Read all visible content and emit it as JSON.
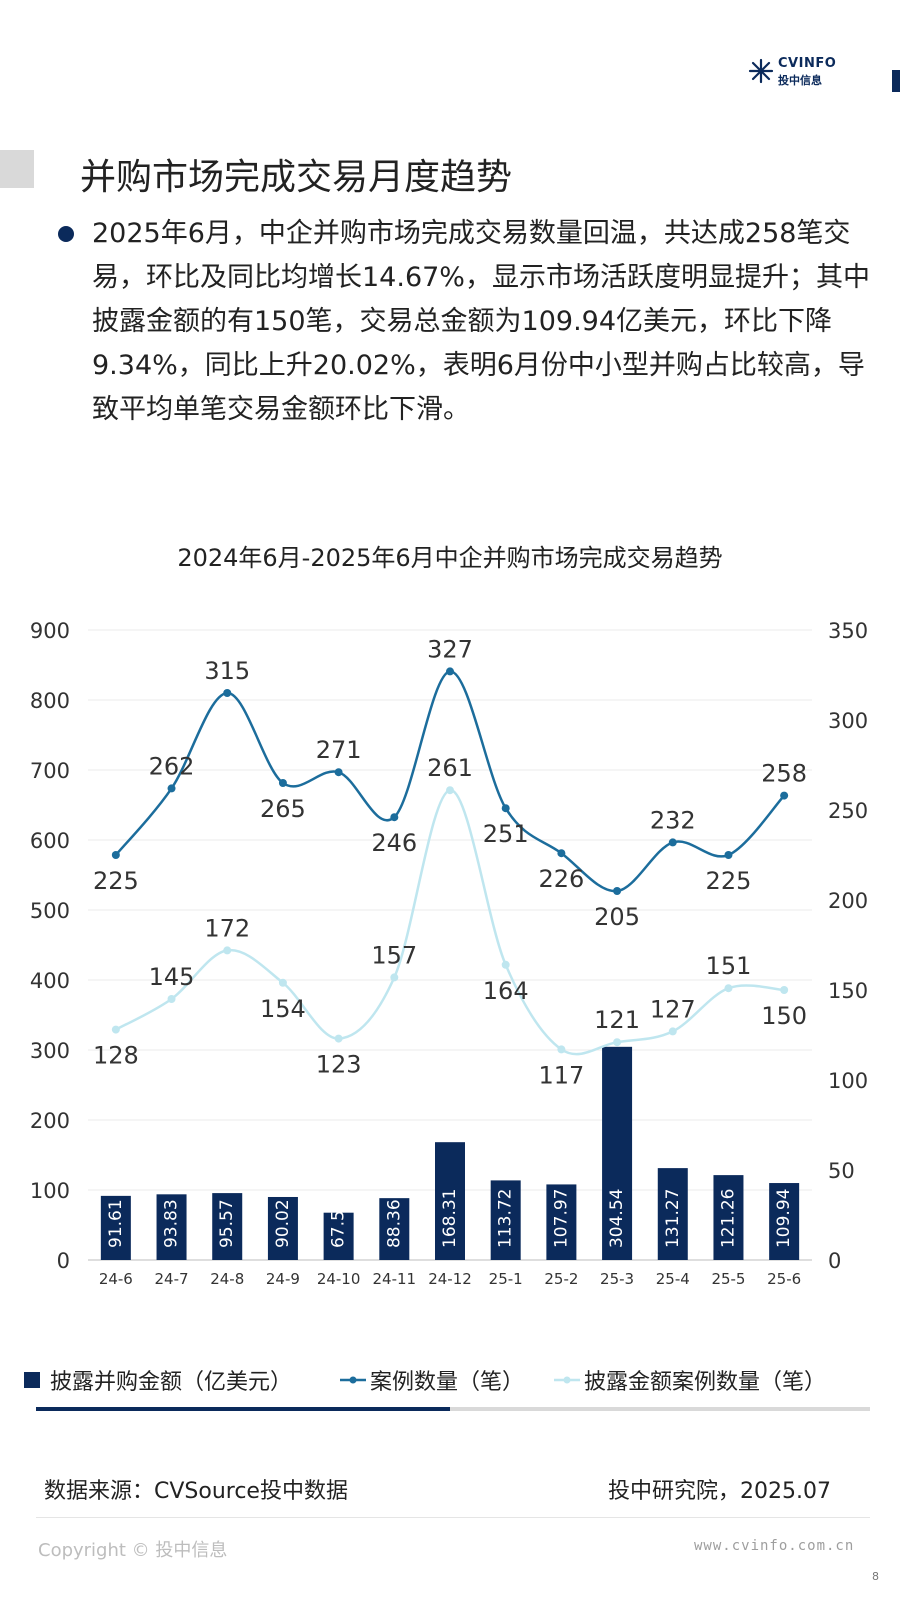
{
  "brand": {
    "name_en": "CVINFO",
    "name_cn": "投中信息",
    "color": "#0b2a5b"
  },
  "title": "并购市场完成交易月度趋势",
  "paragraph": "2025年6月，中企并购市场完成交易数量回温，共达成258笔交易，环比及同比均增长14.67%，显示市场活跃度明显提升；其中披露金额的有150笔，交易总金额为109.94亿美元，环比下降9.34%，同比上升20.02%，表明6月份中小型并购占比较高，导致平均单笔交易金额环比下滑。",
  "chart_data": {
    "type": "bar",
    "title": "2024年6月-2025年6月中企并购市场完成交易趋势",
    "categories": [
      "24-6",
      "24-7",
      "24-8",
      "24-9",
      "24-10",
      "24-11",
      "24-12",
      "25-1",
      "25-2",
      "25-3",
      "25-4",
      "25-5",
      "25-6"
    ],
    "y_left": {
      "min": 0,
      "max": 900,
      "step": 100
    },
    "y_right": {
      "min": 0,
      "max": 350,
      "step": 50
    },
    "series": [
      {
        "name": "披露并购金额（亿美元）",
        "type": "bar",
        "axis": "left",
        "color": "#0b2a5b",
        "values": [
          91.61,
          93.83,
          95.57,
          90.02,
          67.58,
          88.36,
          168.31,
          113.72,
          107.97,
          304.54,
          131.27,
          121.26,
          109.94
        ]
      },
      {
        "name": "案例数量（笔）",
        "type": "line",
        "axis": "right",
        "color": "#1c6d9c",
        "values": [
          225,
          262,
          315,
          265,
          271,
          246,
          327,
          251,
          226,
          205,
          232,
          225,
          258
        ]
      },
      {
        "name": "披露金额案例数量（笔）",
        "type": "line",
        "axis": "right",
        "color": "#bfe6ef",
        "values": [
          128,
          145,
          172,
          154,
          123,
          157,
          261,
          164,
          117,
          121,
          127,
          151,
          150
        ]
      }
    ],
    "grid": true,
    "legend": "bottom"
  },
  "footer": {
    "source": "数据来源：CVSource投中数据",
    "org": "投中研究院，2025.07",
    "copyright": "Copyright © 投中信息",
    "website": "www.cvinfo.com.cn",
    "page": "8"
  }
}
